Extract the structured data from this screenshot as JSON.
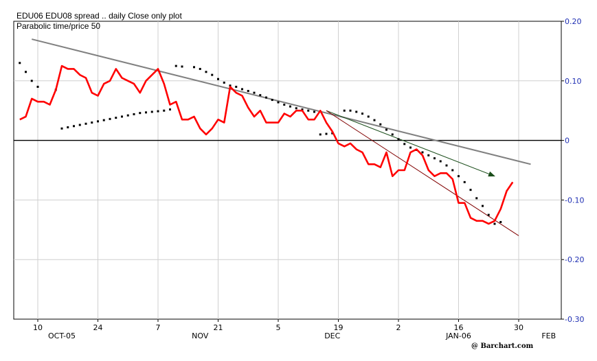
{
  "chart_data": {
    "type": "line",
    "title": "EDU06 EDU08 spread .. daily Close only plot",
    "subtitle": "Parabolic time/price  50",
    "watermark": "@ Barchart.com",
    "grid": true,
    "ylim": [
      -0.3,
      0.2
    ],
    "y_ticks": [
      {
        "value": 0.2,
        "label": "0.20"
      },
      {
        "value": 0.1,
        "label": "0.10"
      },
      {
        "value": 0.0,
        "label": "0"
      },
      {
        "value": -0.1,
        "label": "-0.10"
      },
      {
        "value": -0.2,
        "label": "-0.20"
      },
      {
        "value": -0.3,
        "label": "-0.30"
      }
    ],
    "xlim": [
      0,
      86
    ],
    "x_ticks": [
      {
        "x": 4,
        "label": "10"
      },
      {
        "x": 14,
        "label": "24"
      },
      {
        "x": 24,
        "label": "7"
      },
      {
        "x": 34,
        "label": "21"
      },
      {
        "x": 44,
        "label": "5"
      },
      {
        "x": 54,
        "label": "19"
      },
      {
        "x": 64,
        "label": "2"
      },
      {
        "x": 74,
        "label": "16"
      },
      {
        "x": 84,
        "label": "30"
      }
    ],
    "month_labels": [
      {
        "x": 8,
        "label": "OCT-05"
      },
      {
        "x": 31,
        "label": "NOV"
      },
      {
        "x": 53,
        "label": "DEC"
      },
      {
        "x": 74,
        "label": "JAN-06"
      },
      {
        "x": 89,
        "label": "FEB"
      }
    ],
    "series": [
      {
        "name": "close",
        "color": "#ff0000",
        "points": [
          [
            1,
            0.035
          ],
          [
            2,
            0.04
          ],
          [
            3,
            0.07
          ],
          [
            4,
            0.065
          ],
          [
            5,
            0.065
          ],
          [
            6,
            0.06
          ],
          [
            7,
            0.085
          ],
          [
            8,
            0.125
          ],
          [
            9,
            0.12
          ],
          [
            10,
            0.12
          ],
          [
            11,
            0.11
          ],
          [
            12,
            0.105
          ],
          [
            13,
            0.08
          ],
          [
            14,
            0.075
          ],
          [
            15,
            0.095
          ],
          [
            16,
            0.1
          ],
          [
            17,
            0.12
          ],
          [
            18,
            0.105
          ],
          [
            19,
            0.1
          ],
          [
            20,
            0.095
          ],
          [
            21,
            0.08
          ],
          [
            22,
            0.1
          ],
          [
            23,
            0.11
          ],
          [
            24,
            0.12
          ],
          [
            25,
            0.095
          ],
          [
            26,
            0.06
          ],
          [
            27,
            0.065
          ],
          [
            28,
            0.035
          ],
          [
            29,
            0.035
          ],
          [
            30,
            0.04
          ],
          [
            31,
            0.02
          ],
          [
            32,
            0.01
          ],
          [
            33,
            0.02
          ],
          [
            34,
            0.035
          ],
          [
            35,
            0.03
          ],
          [
            36,
            0.09
          ],
          [
            37,
            0.08
          ],
          [
            38,
            0.075
          ],
          [
            39,
            0.055
          ],
          [
            40,
            0.04
          ],
          [
            41,
            0.05
          ],
          [
            42,
            0.03
          ],
          [
            43,
            0.03
          ],
          [
            44,
            0.03
          ],
          [
            45,
            0.045
          ],
          [
            46,
            0.04
          ],
          [
            47,
            0.05
          ],
          [
            48,
            0.05
          ],
          [
            49,
            0.035
          ],
          [
            50,
            0.035
          ],
          [
            51,
            0.05
          ],
          [
            52,
            0.03
          ],
          [
            53,
            0.015
          ],
          [
            54,
            -0.005
          ],
          [
            55,
            -0.01
          ],
          [
            56,
            -0.005
          ],
          [
            57,
            -0.015
          ],
          [
            58,
            -0.02
          ],
          [
            59,
            -0.04
          ],
          [
            60,
            -0.04
          ],
          [
            61,
            -0.045
          ],
          [
            62,
            -0.02
          ],
          [
            63,
            -0.06
          ],
          [
            64,
            -0.05
          ],
          [
            65,
            -0.05
          ],
          [
            66,
            -0.02
          ],
          [
            67,
            -0.015
          ],
          [
            68,
            -0.025
          ],
          [
            69,
            -0.05
          ],
          [
            70,
            -0.06
          ],
          [
            71,
            -0.055
          ],
          [
            72,
            -0.055
          ],
          [
            73,
            -0.065
          ],
          [
            74,
            -0.105
          ],
          [
            75,
            -0.105
          ],
          [
            76,
            -0.13
          ],
          [
            77,
            -0.135
          ],
          [
            78,
            -0.135
          ],
          [
            79,
            -0.14
          ],
          [
            80,
            -0.135
          ],
          [
            81,
            -0.115
          ],
          [
            82,
            -0.085
          ],
          [
            83,
            -0.07
          ]
        ]
      },
      {
        "name": "parabolic",
        "color": "#000000",
        "points": [
          [
            1,
            0.13
          ],
          [
            2,
            0.115
          ],
          [
            3,
            0.1
          ],
          [
            4,
            0.09
          ],
          [
            7,
            0.085
          ],
          [
            8,
            0.02
          ],
          [
            9,
            0.022
          ],
          [
            10,
            0.024
          ],
          [
            11,
            0.026
          ],
          [
            12,
            0.028
          ],
          [
            13,
            0.03
          ],
          [
            14,
            0.032
          ],
          [
            15,
            0.034
          ],
          [
            16,
            0.036
          ],
          [
            17,
            0.038
          ],
          [
            18,
            0.04
          ],
          [
            19,
            0.042
          ],
          [
            20,
            0.044
          ],
          [
            21,
            0.046
          ],
          [
            22,
            0.047
          ],
          [
            23,
            0.048
          ],
          [
            24,
            0.049
          ],
          [
            25,
            0.05
          ],
          [
            26,
            0.052
          ],
          [
            27,
            0.125
          ],
          [
            28,
            0.124
          ],
          [
            30,
            0.123
          ],
          [
            31,
            0.12
          ],
          [
            32,
            0.115
          ],
          [
            33,
            0.11
          ],
          [
            34,
            0.103
          ],
          [
            35,
            0.097
          ],
          [
            36,
            0.092
          ],
          [
            37,
            0.09
          ],
          [
            38,
            0.086
          ],
          [
            39,
            0.083
          ],
          [
            40,
            0.08
          ],
          [
            41,
            0.076
          ],
          [
            42,
            0.072
          ],
          [
            43,
            0.068
          ],
          [
            44,
            0.064
          ],
          [
            45,
            0.06
          ],
          [
            46,
            0.057
          ],
          [
            47,
            0.054
          ],
          [
            48,
            0.052
          ],
          [
            49,
            0.05
          ],
          [
            50,
            0.048
          ],
          [
            51,
            0.01
          ],
          [
            52,
            0.011
          ],
          [
            53,
            0.012
          ],
          [
            55,
            0.05
          ],
          [
            56,
            0.05
          ],
          [
            57,
            0.048
          ],
          [
            58,
            0.045
          ],
          [
            59,
            0.04
          ],
          [
            60,
            0.034
          ],
          [
            61,
            0.027
          ],
          [
            62,
            0.018
          ],
          [
            63,
            0.01
          ],
          [
            64,
            0.002
          ],
          [
            65,
            -0.006
          ],
          [
            66,
            -0.012
          ],
          [
            67,
            -0.016
          ],
          [
            68,
            -0.02
          ],
          [
            69,
            -0.025
          ],
          [
            70,
            -0.03
          ],
          [
            71,
            -0.035
          ],
          [
            72,
            -0.042
          ],
          [
            73,
            -0.05
          ],
          [
            74,
            -0.06
          ],
          [
            75,
            -0.07
          ],
          [
            76,
            -0.083
          ],
          [
            77,
            -0.097
          ],
          [
            78,
            -0.11
          ],
          [
            79,
            -0.125
          ],
          [
            80,
            -0.14
          ],
          [
            81,
            -0.137
          ]
        ]
      }
    ],
    "trendlines": [
      {
        "name": "long-downtrend",
        "color": "#808080",
        "x1": 3,
        "y1": 0.17,
        "x2": 86,
        "y2": -0.04
      },
      {
        "name": "green-channel",
        "color": "#1a4d1a",
        "x1": 52,
        "y1": 0.05,
        "x2": 80,
        "y2": -0.06,
        "arrow": true
      },
      {
        "name": "maroon-channel",
        "color": "#800000",
        "x1": 52,
        "y1": 0.05,
        "x2": 84,
        "y2": -0.16
      }
    ],
    "zero_line": 0
  }
}
